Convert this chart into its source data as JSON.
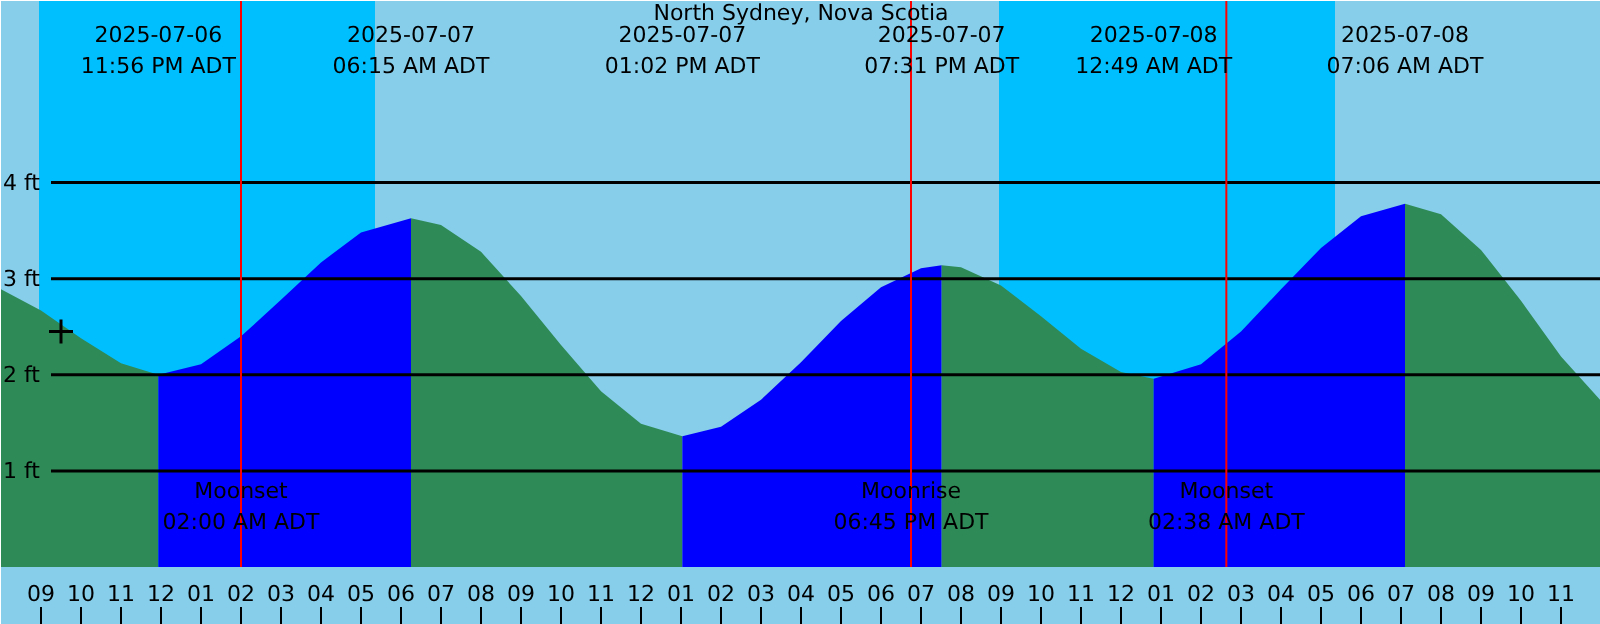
{
  "chart_data": {
    "type": "area",
    "title": "North Sydney, Nova Scotia",
    "xlim": [
      "2025-07-06T20:00",
      "2025-07-08T12:00"
    ],
    "ylim": [
      0,
      5.89
    ],
    "xticks": [
      {
        "value": "2025-07-06T21:00",
        "label": "09"
      },
      {
        "value": "2025-07-06T22:00",
        "label": "10"
      },
      {
        "value": "2025-07-06T23:00",
        "label": "11"
      },
      {
        "value": "2025-07-07T00:00",
        "label": "12"
      },
      {
        "value": "2025-07-07T01:00",
        "label": "01"
      },
      {
        "value": "2025-07-07T02:00",
        "label": "02"
      },
      {
        "value": "2025-07-07T03:00",
        "label": "03"
      },
      {
        "value": "2025-07-07T04:00",
        "label": "04"
      },
      {
        "value": "2025-07-07T05:00",
        "label": "05"
      },
      {
        "value": "2025-07-07T06:00",
        "label": "06"
      },
      {
        "value": "2025-07-07T07:00",
        "label": "07"
      },
      {
        "value": "2025-07-07T08:00",
        "label": "08"
      },
      {
        "value": "2025-07-07T09:00",
        "label": "09"
      },
      {
        "value": "2025-07-07T10:00",
        "label": "10"
      },
      {
        "value": "2025-07-07T11:00",
        "label": "11"
      },
      {
        "value": "2025-07-07T12:00",
        "label": "12"
      },
      {
        "value": "2025-07-07T13:00",
        "label": "01"
      },
      {
        "value": "2025-07-07T14:00",
        "label": "02"
      },
      {
        "value": "2025-07-07T15:00",
        "label": "03"
      },
      {
        "value": "2025-07-07T16:00",
        "label": "04"
      },
      {
        "value": "2025-07-07T17:00",
        "label": "05"
      },
      {
        "value": "2025-07-07T18:00",
        "label": "06"
      },
      {
        "value": "2025-07-07T19:00",
        "label": "07"
      },
      {
        "value": "2025-07-07T20:00",
        "label": "08"
      },
      {
        "value": "2025-07-07T21:00",
        "label": "09"
      },
      {
        "value": "2025-07-07T22:00",
        "label": "10"
      },
      {
        "value": "2025-07-07T23:00",
        "label": "11"
      },
      {
        "value": "2025-07-08T00:00",
        "label": "12"
      },
      {
        "value": "2025-07-08T01:00",
        "label": "01"
      },
      {
        "value": "2025-07-08T02:00",
        "label": "02"
      },
      {
        "value": "2025-07-08T03:00",
        "label": "03"
      },
      {
        "value": "2025-07-08T04:00",
        "label": "04"
      },
      {
        "value": "2025-07-08T05:00",
        "label": "05"
      },
      {
        "value": "2025-07-08T06:00",
        "label": "06"
      },
      {
        "value": "2025-07-08T07:00",
        "label": "07"
      },
      {
        "value": "2025-07-08T08:00",
        "label": "08"
      },
      {
        "value": "2025-07-08T09:00",
        "label": "09"
      },
      {
        "value": "2025-07-08T10:00",
        "label": "10"
      },
      {
        "value": "2025-07-08T11:00",
        "label": "11"
      }
    ],
    "yticks": [
      {
        "value": 1,
        "label": "1 ft"
      },
      {
        "value": 2,
        "label": "2 ft"
      },
      {
        "value": 3,
        "label": "3 ft"
      },
      {
        "value": 4,
        "label": "4 ft"
      }
    ],
    "grid": "y",
    "series": [
      {
        "color": "#2e8b57",
        "x": [
          "2025-07-06T20:00",
          "2025-07-06T21:00",
          "2025-07-06T22:00",
          "2025-07-06T23:00",
          "2025-07-06T23:56"
        ],
        "values": [
          2.89,
          2.67,
          2.38,
          2.12,
          2.0
        ]
      },
      {
        "color": "#0000ff",
        "x": [
          "2025-07-06T23:56",
          "2025-07-07T01:00",
          "2025-07-07T02:00",
          "2025-07-07T03:00",
          "2025-07-07T04:00",
          "2025-07-07T05:00",
          "2025-07-07T06:15"
        ],
        "values": [
          2.0,
          2.11,
          2.4,
          2.78,
          3.17,
          3.48,
          3.63
        ]
      },
      {
        "color": "#2e8b57",
        "x": [
          "2025-07-07T06:15",
          "2025-07-07T07:00",
          "2025-07-07T08:00",
          "2025-07-07T09:00",
          "2025-07-07T10:00",
          "2025-07-07T11:00",
          "2025-07-07T12:00",
          "2025-07-07T13:02"
        ],
        "values": [
          3.63,
          3.56,
          3.28,
          2.82,
          2.31,
          1.83,
          1.49,
          1.36
        ]
      },
      {
        "color": "#0000ff",
        "x": [
          "2025-07-07T13:02",
          "2025-07-07T14:00",
          "2025-07-07T15:00",
          "2025-07-07T16:00",
          "2025-07-07T17:00",
          "2025-07-07T18:00",
          "2025-07-07T19:00",
          "2025-07-07T19:31"
        ],
        "values": [
          1.36,
          1.46,
          1.74,
          2.13,
          2.56,
          2.91,
          3.11,
          3.14
        ]
      },
      {
        "color": "#2e8b57",
        "x": [
          "2025-07-07T19:31",
          "2025-07-07T20:00",
          "2025-07-07T21:00",
          "2025-07-07T22:00",
          "2025-07-07T23:00",
          "2025-07-08T00:00",
          "2025-07-08T00:49"
        ],
        "values": [
          3.14,
          3.12,
          2.93,
          2.61,
          2.27,
          2.03,
          1.96
        ]
      },
      {
        "color": "#0000ff",
        "x": [
          "2025-07-08T00:49",
          "2025-07-08T02:00",
          "2025-07-08T03:00",
          "2025-07-08T04:00",
          "2025-07-08T05:00",
          "2025-07-08T06:00",
          "2025-07-08T07:06"
        ],
        "values": [
          1.96,
          2.11,
          2.45,
          2.89,
          3.32,
          3.65,
          3.78
        ]
      },
      {
        "color": "#2e8b57",
        "x": [
          "2025-07-08T07:06",
          "2025-07-08T08:00",
          "2025-07-08T09:00",
          "2025-07-08T10:00",
          "2025-07-08T11:00",
          "2025-07-08T12:00"
        ],
        "values": [
          3.78,
          3.67,
          3.3,
          2.77,
          2.19,
          1.73
        ]
      },
      {
        "type": "scatter",
        "marker": "cross",
        "color": "#000000",
        "x": [
          "2025-07-06T21:30"
        ],
        "values": [
          2.45
        ]
      }
    ],
    "bands": [
      {
        "axis": "x",
        "from": "2025-07-06T20:57",
        "to": "2025-07-07T05:21",
        "color": "#00bfff"
      },
      {
        "axis": "x",
        "from": "2025-07-07T20:57",
        "to": "2025-07-08T05:21",
        "color": "#00bfff"
      }
    ],
    "ref_lines": [
      {
        "axis": "x",
        "value": "2025-07-07T02:00",
        "label": "Moonset\n02:00 AM ADT",
        "color": "#ff0000"
      },
      {
        "axis": "x",
        "value": "2025-07-07T18:45",
        "label": "Moonrise\n06:45 PM ADT",
        "color": "#ff0000"
      },
      {
        "axis": "x",
        "value": "2025-07-08T02:38",
        "label": "Moonset\n02:38 AM ADT",
        "color": "#ff0000"
      }
    ],
    "annotations": [
      "2025-07-06\n11:56 PM ADT",
      "2025-07-07\n06:15 AM ADT",
      "2025-07-07\n01:02 PM ADT",
      "2025-07-07\n07:31 PM ADT",
      "2025-07-08\n12:49 AM ADT",
      "2025-07-08\n07:06 AM ADT"
    ]
  }
}
